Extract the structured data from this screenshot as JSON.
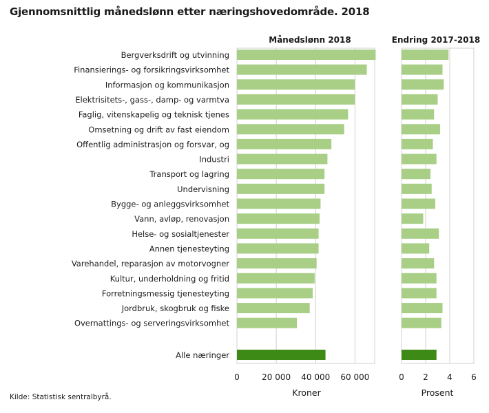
{
  "title": "Gjennomsnittlig månedslønn etter næringshovedområde. 2018",
  "source": "Kilde: Statistisk sentralbyrå.",
  "colors": {
    "bar": "#a9cf86",
    "bar_total": "#3d8a17",
    "grid": "#d0d0d0",
    "axis": "#666666"
  },
  "chart_data": [
    {
      "type": "bar",
      "orientation": "horizontal",
      "title": "Månedslønn 2018",
      "xlabel": "Kroner",
      "xlim": [
        0,
        70000
      ],
      "xticks": [
        0,
        20000,
        40000,
        60000
      ],
      "xtick_labels": [
        "0",
        "20 000",
        "40 000",
        "60 000"
      ],
      "grid": true,
      "categories": [
        "Bergverksdrift og utvinning",
        "Finansierings- og forsikringsvirksomhet",
        "Informasjon og kommunikasjon",
        "Elektrisitets-, gass-, damp- og varmtva",
        "Faglig, vitenskapelig og teknisk tjenes",
        "Omsetning og drift av fast eiendom",
        "Offentlig administrasjon og forsvar, og",
        "Industri",
        "Transport og lagring",
        "Undervisning",
        "Bygge- og anleggsvirksomhet",
        "Vann, avløp, renovasjon",
        "Helse- og sosialtjenester",
        "Annen tjenesteyting",
        "Varehandel, reparasjon av motorvogner",
        "Kultur, underholdning og fritid",
        "Forretningsmessig tjenesteyting",
        "Jordbruk, skogbruk og fiske",
        "Overnattings- og serveringsvirksomhet",
        "Alle næringer"
      ],
      "values": [
        70500,
        66000,
        60000,
        60000,
        56500,
        54500,
        48000,
        46000,
        44500,
        44500,
        42500,
        42000,
        41500,
        41500,
        40500,
        39500,
        38500,
        37000,
        30500,
        45000
      ]
    },
    {
      "type": "bar",
      "orientation": "horizontal",
      "title": "Endring 2017-2018",
      "xlabel": "Prosent",
      "xlim": [
        0,
        6
      ],
      "xticks": [
        0,
        2,
        4,
        6
      ],
      "xtick_labels": [
        "0",
        "2",
        "4",
        "6"
      ],
      "grid": true,
      "values": [
        3.9,
        3.4,
        3.5,
        3.0,
        2.7,
        3.2,
        2.6,
        2.9,
        2.4,
        2.5,
        2.8,
        1.8,
        3.1,
        2.3,
        2.7,
        2.9,
        2.9,
        3.4,
        3.3,
        2.9
      ]
    }
  ]
}
